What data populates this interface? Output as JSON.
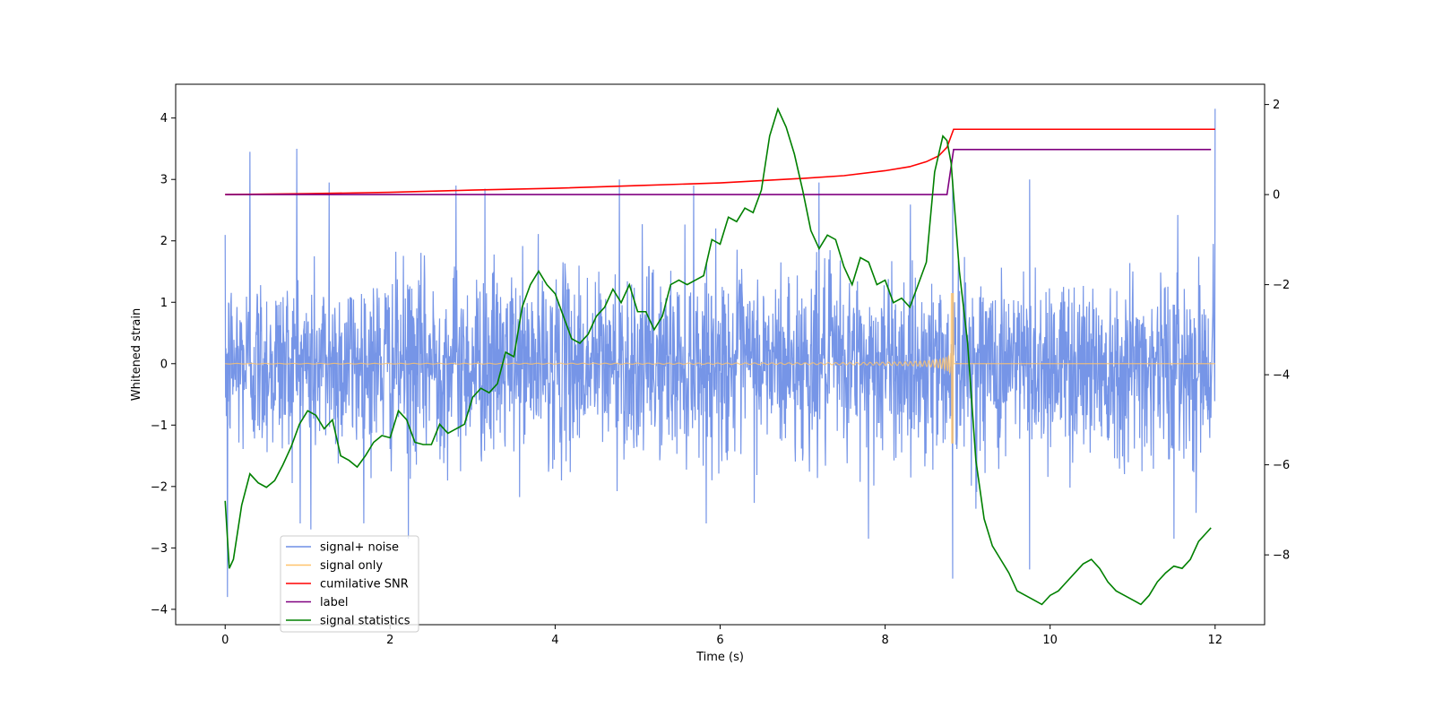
{
  "chart_data": {
    "type": "line",
    "xlabel": "Time (s)",
    "ylabel": "Whitened strain",
    "y2label": "",
    "xlim": [
      -0.6,
      12.6
    ],
    "ylim": [
      -4.25,
      4.55
    ],
    "y2lim": [
      -9.55,
      2.45
    ],
    "xticks": [
      0,
      2,
      4,
      6,
      8,
      10,
      12
    ],
    "yticks": [
      -4,
      -3,
      -2,
      -1,
      0,
      1,
      2,
      3,
      4
    ],
    "y2ticks": [
      -8,
      -6,
      -4,
      -2,
      0,
      2
    ],
    "legend_position": "lower-left",
    "colors": {
      "signal_noise": "#6f8fe6",
      "signal_only": "#ffc36b",
      "snr": "#ff0000",
      "label": "#800080",
      "stats": "#008000"
    },
    "series": [
      {
        "name": "signal+ noise",
        "axis": "left",
        "kind": "noise",
        "x_range": [
          0,
          12
        ],
        "typical_envelope": [
          -1.7,
          1.7
        ],
        "spikes": [
          {
            "x": 0.03,
            "y": -3.8
          },
          {
            "x": 0.3,
            "y": 3.45
          },
          {
            "x": 0.87,
            "y": 3.5
          },
          {
            "x": 1.26,
            "y": 2.95
          },
          {
            "x": 1.04,
            "y": -2.7
          },
          {
            "x": 2.22,
            "y": -2.85
          },
          {
            "x": 2.8,
            "y": 2.9
          },
          {
            "x": 3.15,
            "y": 2.85
          },
          {
            "x": 4.78,
            "y": 3.0
          },
          {
            "x": 5.68,
            "y": 2.9
          },
          {
            "x": 7.2,
            "y": 2.95
          },
          {
            "x": 7.8,
            "y": -2.85
          },
          {
            "x": 8.82,
            "y": -3.5
          },
          {
            "x": 8.82,
            "y": 3.0
          },
          {
            "x": 9.75,
            "y": -3.35
          },
          {
            "x": 9.75,
            "y": 3.0
          },
          {
            "x": 11.5,
            "y": -2.85
          },
          {
            "x": 12.0,
            "y": 4.15
          }
        ]
      },
      {
        "name": "signal only",
        "axis": "left",
        "kind": "chirp",
        "x_range": [
          0,
          12
        ],
        "merger_time": 8.83,
        "peak_amplitude": 1.15,
        "trough_amplitude": -1.3
      },
      {
        "name": "cumilative SNR",
        "axis": "right",
        "kind": "curve",
        "x": [
          0,
          1,
          2,
          3,
          4,
          5,
          6,
          7,
          7.5,
          8,
          8.3,
          8.5,
          8.65,
          8.75,
          8.83,
          8.85,
          12
        ],
        "y": [
          0.0,
          0.02,
          0.05,
          0.1,
          0.14,
          0.2,
          0.26,
          0.36,
          0.42,
          0.53,
          0.62,
          0.73,
          0.86,
          1.05,
          1.45,
          1.45,
          1.45
        ]
      },
      {
        "name": "label",
        "axis": "right",
        "kind": "step",
        "x": [
          0,
          8.75,
          8.83,
          11.95
        ],
        "y": [
          0,
          0,
          1.0,
          1.0
        ]
      },
      {
        "name": "signal statistics",
        "axis": "right",
        "kind": "curve",
        "x": [
          0,
          0.05,
          0.1,
          0.2,
          0.3,
          0.4,
          0.5,
          0.6,
          0.7,
          0.8,
          0.9,
          1.0,
          1.1,
          1.2,
          1.3,
          1.4,
          1.5,
          1.6,
          1.7,
          1.8,
          1.9,
          2.0,
          2.1,
          2.2,
          2.3,
          2.4,
          2.5,
          2.6,
          2.7,
          2.8,
          2.9,
          3.0,
          3.1,
          3.2,
          3.3,
          3.4,
          3.5,
          3.6,
          3.7,
          3.8,
          3.9,
          4.0,
          4.1,
          4.2,
          4.3,
          4.4,
          4.5,
          4.6,
          4.7,
          4.8,
          4.9,
          5.0,
          5.1,
          5.2,
          5.3,
          5.4,
          5.5,
          5.6,
          5.7,
          5.8,
          5.9,
          6.0,
          6.1,
          6.2,
          6.3,
          6.4,
          6.5,
          6.6,
          6.7,
          6.8,
          6.9,
          7.0,
          7.1,
          7.2,
          7.3,
          7.4,
          7.5,
          7.6,
          7.7,
          7.8,
          7.9,
          8.0,
          8.1,
          8.2,
          8.3,
          8.4,
          8.5,
          8.6,
          8.7,
          8.75,
          8.8,
          8.85,
          8.9,
          9.0,
          9.1,
          9.2,
          9.3,
          9.4,
          9.5,
          9.6,
          9.7,
          9.8,
          9.9,
          10.0,
          10.1,
          10.2,
          10.3,
          10.4,
          10.5,
          10.6,
          10.7,
          10.8,
          10.9,
          11.0,
          11.1,
          11.2,
          11.3,
          11.4,
          11.5,
          11.6,
          11.7,
          11.8,
          11.9,
          11.95
        ],
        "y": [
          -6.8,
          -8.3,
          -8.1,
          -6.9,
          -6.2,
          -6.4,
          -6.5,
          -6.35,
          -6.0,
          -5.6,
          -5.1,
          -4.8,
          -4.9,
          -5.2,
          -5.0,
          -5.8,
          -5.9,
          -6.05,
          -5.8,
          -5.5,
          -5.35,
          -5.4,
          -4.8,
          -5.0,
          -5.5,
          -5.55,
          -5.55,
          -5.1,
          -5.3,
          -5.2,
          -5.1,
          -4.5,
          -4.3,
          -4.4,
          -4.2,
          -3.5,
          -3.6,
          -2.5,
          -2.0,
          -1.7,
          -2.0,
          -2.2,
          -2.7,
          -3.2,
          -3.3,
          -3.1,
          -2.7,
          -2.5,
          -2.1,
          -2.4,
          -2.0,
          -2.6,
          -2.6,
          -3.0,
          -2.7,
          -2.0,
          -1.9,
          -2.0,
          -1.9,
          -1.8,
          -1.0,
          -1.1,
          -0.5,
          -0.6,
          -0.3,
          -0.4,
          0.1,
          1.3,
          1.9,
          1.5,
          0.9,
          0.1,
          -0.8,
          -1.2,
          -0.9,
          -1.0,
          -1.6,
          -2.0,
          -1.4,
          -1.5,
          -2.0,
          -1.9,
          -2.4,
          -2.3,
          -2.5,
          -2.0,
          -1.5,
          0.5,
          1.3,
          1.2,
          0.7,
          -0.5,
          -1.7,
          -3.3,
          -5.9,
          -7.2,
          -7.8,
          -8.1,
          -8.4,
          -8.8,
          -8.9,
          -9.0,
          -9.1,
          -8.9,
          -8.8,
          -8.6,
          -8.4,
          -8.2,
          -8.1,
          -8.3,
          -8.6,
          -8.8,
          -8.9,
          -9.0,
          -9.1,
          -8.9,
          -8.6,
          -8.4,
          -8.25,
          -8.3,
          -8.1,
          -7.7,
          -7.5,
          -7.4
        ]
      }
    ]
  }
}
